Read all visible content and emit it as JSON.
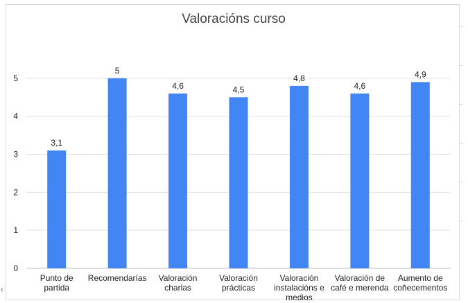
{
  "chart_data": {
    "type": "bar",
    "title": "Valoracións curso",
    "xlabel": "",
    "ylabel": "",
    "categories": [
      [
        "Punto de",
        "partida"
      ],
      [
        "Recomendarías"
      ],
      [
        "Valoración",
        "charlas"
      ],
      [
        "Valoración",
        "prácticas"
      ],
      [
        "Valoración",
        "instalacións e",
        "medios"
      ],
      [
        "Valoración de",
        "café e merenda"
      ],
      [
        "Aumento de",
        "coñecementos"
      ]
    ],
    "values": [
      3.1,
      5,
      4.6,
      4.5,
      4.8,
      4.6,
      4.9
    ],
    "data_labels": [
      "3,1",
      "5",
      "4,6",
      "4,5",
      "4,8",
      "4,6",
      "4,9"
    ],
    "ylim": [
      0,
      5.6
    ],
    "yticks": [
      0,
      1,
      2,
      3,
      4,
      5
    ],
    "ytick_labels": [
      "0",
      "1",
      "2",
      "3",
      "4",
      "5"
    ],
    "grid": true,
    "legend": "none",
    "colors": {
      "bar": "#4285f4",
      "grid": "#e0e0e0",
      "axis": "#bdbdbd",
      "text": "#222222",
      "title": "#444444"
    }
  },
  "ui": {
    "left_arrow_icon": "chevron-left-icon"
  }
}
